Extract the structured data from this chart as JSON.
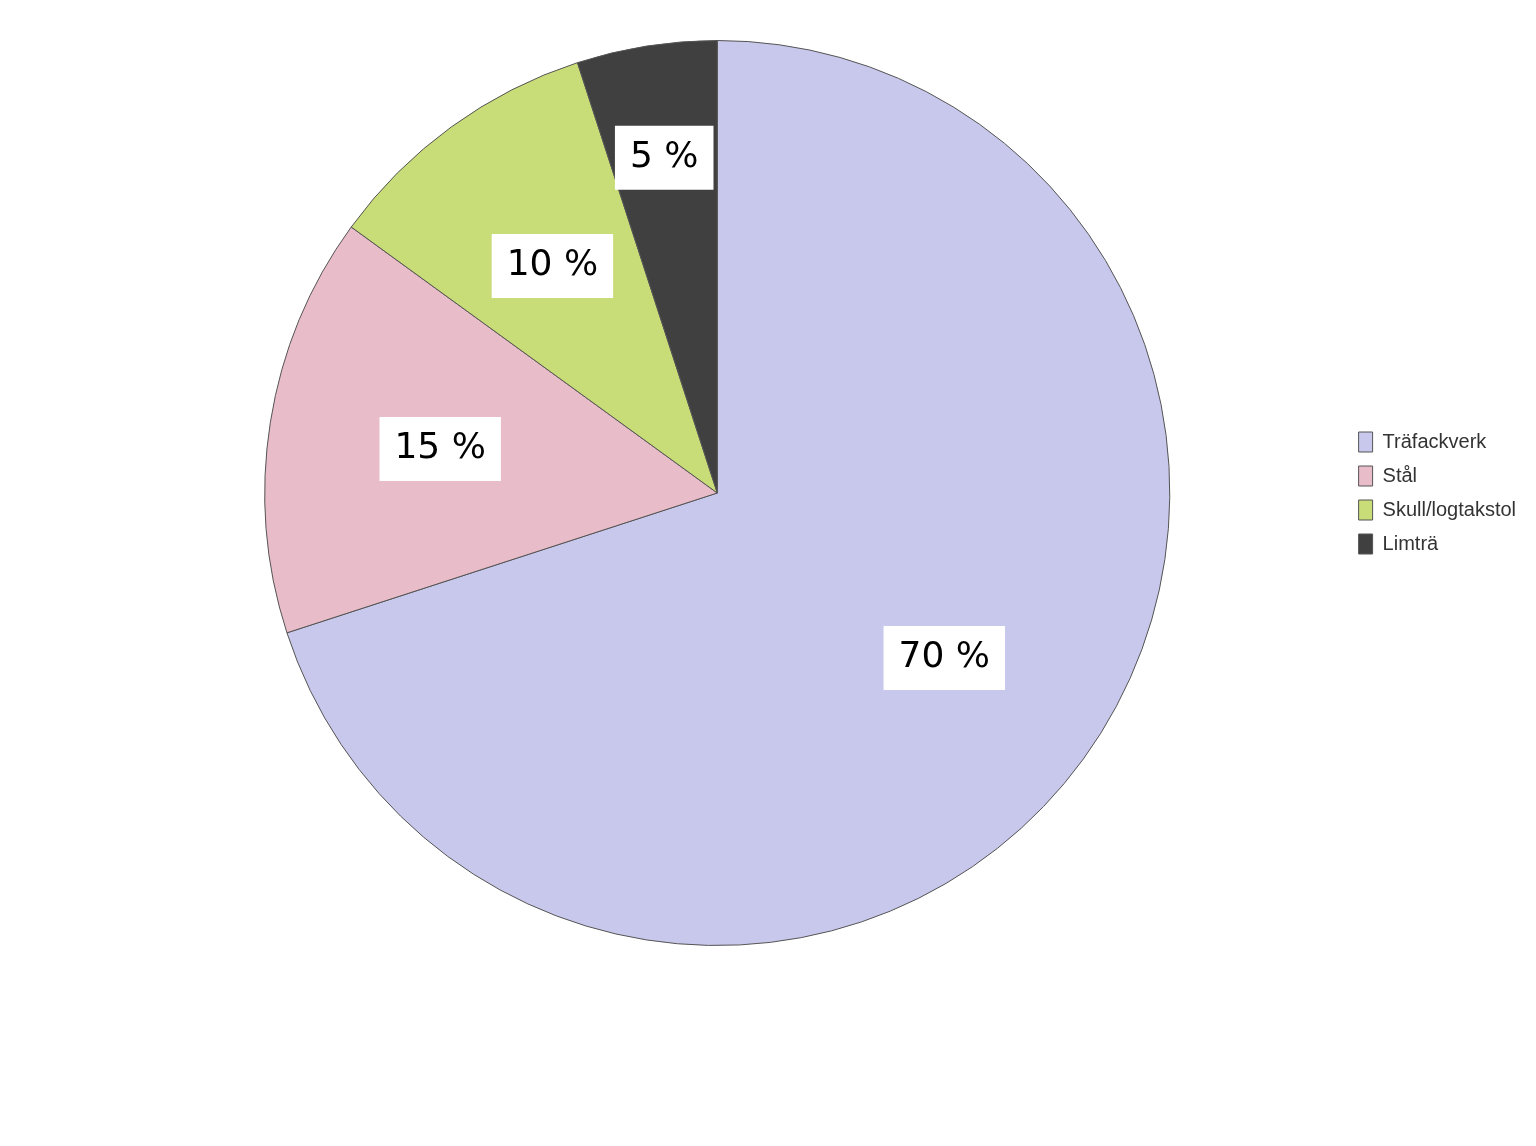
{
  "chart_data": {
    "type": "pie",
    "categories": [
      "Träfackverk",
      "Stål",
      "Skull/logtakstol",
      "Limträ"
    ],
    "values": [
      70,
      15,
      10,
      5
    ],
    "colors": [
      "#c8c8ec",
      "#e8bcc8",
      "#c8dc78",
      "#404040"
    ],
    "value_labels": [
      "70 %",
      "15 %",
      "10 %",
      "5 %"
    ],
    "legend": "right"
  }
}
